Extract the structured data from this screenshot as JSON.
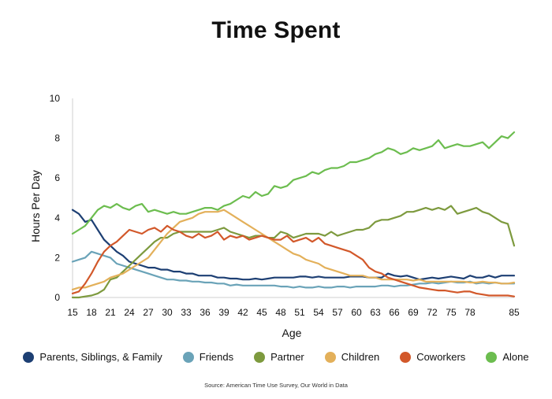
{
  "chart_data": {
    "type": "line",
    "title": "Time Spent",
    "xlabel": "Age",
    "ylabel": "Hours Per Day",
    "xlim": [
      15,
      85
    ],
    "ylim": [
      0,
      10
    ],
    "xticks": [
      15,
      18,
      21,
      24,
      27,
      30,
      33,
      36,
      39,
      42,
      45,
      48,
      51,
      54,
      57,
      60,
      63,
      66,
      69,
      72,
      75,
      78,
      85
    ],
    "yticks": [
      0,
      2,
      4,
      6,
      8,
      10
    ],
    "x": [
      15,
      16,
      17,
      18,
      19,
      20,
      21,
      22,
      23,
      24,
      25,
      26,
      27,
      28,
      29,
      30,
      31,
      32,
      33,
      34,
      35,
      36,
      37,
      38,
      39,
      40,
      41,
      42,
      43,
      44,
      45,
      46,
      47,
      48,
      49,
      50,
      51,
      52,
      53,
      54,
      55,
      56,
      57,
      58,
      59,
      60,
      61,
      62,
      63,
      64,
      65,
      66,
      67,
      68,
      69,
      70,
      71,
      72,
      73,
      74,
      75,
      76,
      77,
      78,
      79,
      80,
      81,
      82,
      83,
      84,
      85
    ],
    "series": [
      {
        "name": "Parents, Siblings, & Family",
        "color": "#1d3f73",
        "values": [
          4.4,
          4.2,
          3.8,
          3.9,
          3.4,
          2.9,
          2.6,
          2.3,
          2.1,
          1.8,
          1.7,
          1.6,
          1.5,
          1.5,
          1.4,
          1.4,
          1.3,
          1.3,
          1.2,
          1.2,
          1.1,
          1.1,
          1.1,
          1.0,
          1.0,
          0.95,
          0.95,
          0.9,
          0.9,
          0.95,
          0.9,
          0.95,
          1.0,
          1.0,
          1.0,
          1.0,
          1.05,
          1.05,
          1.0,
          1.05,
          1.0,
          1.0,
          1.0,
          1.0,
          1.05,
          1.05,
          1.05,
          1.0,
          1.0,
          1.0,
          1.2,
          1.1,
          1.05,
          1.1,
          1.0,
          0.9,
          0.95,
          1.0,
          0.95,
          1.0,
          1.05,
          1.0,
          0.95,
          1.1,
          1.0,
          1.0,
          1.1,
          1.0,
          1.1,
          1.1,
          1.1
        ]
      },
      {
        "name": "Friends",
        "color": "#6aa3b8",
        "values": [
          1.8,
          1.9,
          2.0,
          2.3,
          2.2,
          2.1,
          2.0,
          1.7,
          1.6,
          1.5,
          1.4,
          1.3,
          1.2,
          1.1,
          1.0,
          0.9,
          0.9,
          0.85,
          0.85,
          0.8,
          0.8,
          0.75,
          0.75,
          0.7,
          0.7,
          0.6,
          0.65,
          0.6,
          0.6,
          0.6,
          0.6,
          0.6,
          0.6,
          0.55,
          0.55,
          0.5,
          0.55,
          0.5,
          0.5,
          0.55,
          0.5,
          0.5,
          0.55,
          0.55,
          0.5,
          0.55,
          0.55,
          0.55,
          0.55,
          0.6,
          0.6,
          0.55,
          0.6,
          0.6,
          0.65,
          0.7,
          0.7,
          0.75,
          0.7,
          0.75,
          0.8,
          0.75,
          0.75,
          0.8,
          0.7,
          0.75,
          0.7,
          0.75,
          0.7,
          0.7,
          0.7
        ]
      },
      {
        "name": "Partner",
        "color": "#7d9a3e",
        "values": [
          0.0,
          0.0,
          0.05,
          0.1,
          0.2,
          0.4,
          0.9,
          1.0,
          1.3,
          1.6,
          1.9,
          2.2,
          2.5,
          2.8,
          3.0,
          3.0,
          3.2,
          3.3,
          3.3,
          3.3,
          3.3,
          3.3,
          3.3,
          3.4,
          3.5,
          3.3,
          3.2,
          3.1,
          3.0,
          3.1,
          3.1,
          3.0,
          3.0,
          3.3,
          3.2,
          3.0,
          3.1,
          3.2,
          3.2,
          3.2,
          3.1,
          3.3,
          3.1,
          3.2,
          3.3,
          3.4,
          3.4,
          3.5,
          3.8,
          3.9,
          3.9,
          4.0,
          4.1,
          4.3,
          4.3,
          4.4,
          4.5,
          4.4,
          4.5,
          4.4,
          4.6,
          4.2,
          4.3,
          4.4,
          4.5,
          4.3,
          4.2,
          4.0,
          3.8,
          3.7,
          2.6
        ]
      },
      {
        "name": "Children",
        "color": "#e3b05a",
        "values": [
          0.4,
          0.5,
          0.5,
          0.6,
          0.7,
          0.8,
          1.0,
          1.1,
          1.2,
          1.4,
          1.6,
          1.8,
          2.0,
          2.4,
          2.8,
          3.2,
          3.5,
          3.8,
          3.9,
          4.0,
          4.2,
          4.3,
          4.3,
          4.3,
          4.4,
          4.2,
          4.0,
          3.8,
          3.6,
          3.4,
          3.2,
          3.0,
          2.8,
          2.6,
          2.4,
          2.2,
          2.1,
          1.9,
          1.8,
          1.7,
          1.5,
          1.4,
          1.3,
          1.2,
          1.1,
          1.1,
          1.1,
          1.0,
          1.0,
          0.9,
          0.9,
          0.9,
          0.9,
          0.9,
          0.85,
          0.9,
          0.8,
          0.8,
          0.8,
          0.8,
          0.8,
          0.8,
          0.8,
          0.75,
          0.75,
          0.8,
          0.75,
          0.75,
          0.7,
          0.7,
          0.75
        ]
      },
      {
        "name": "Coworkers",
        "color": "#d2582a",
        "values": [
          0.2,
          0.3,
          0.7,
          1.2,
          1.8,
          2.3,
          2.6,
          2.8,
          3.1,
          3.4,
          3.3,
          3.2,
          3.4,
          3.5,
          3.3,
          3.6,
          3.4,
          3.3,
          3.1,
          3.0,
          3.2,
          3.0,
          3.1,
          3.3,
          2.9,
          3.1,
          3.0,
          3.1,
          2.9,
          3.0,
          3.1,
          3.0,
          2.9,
          2.9,
          3.1,
          2.8,
          2.9,
          3.0,
          2.8,
          3.0,
          2.7,
          2.6,
          2.5,
          2.4,
          2.3,
          2.1,
          1.9,
          1.5,
          1.3,
          1.2,
          1.0,
          0.9,
          0.8,
          0.7,
          0.6,
          0.5,
          0.45,
          0.4,
          0.35,
          0.35,
          0.3,
          0.25,
          0.3,
          0.3,
          0.2,
          0.15,
          0.1,
          0.1,
          0.1,
          0.1,
          0.05
        ]
      },
      {
        "name": "Alone",
        "color": "#6cbd4f",
        "values": [
          3.2,
          3.4,
          3.6,
          4.0,
          4.4,
          4.6,
          4.5,
          4.7,
          4.5,
          4.4,
          4.6,
          4.7,
          4.3,
          4.4,
          4.3,
          4.2,
          4.3,
          4.2,
          4.2,
          4.3,
          4.4,
          4.5,
          4.5,
          4.4,
          4.6,
          4.7,
          4.9,
          5.1,
          5.0,
          5.3,
          5.1,
          5.2,
          5.6,
          5.5,
          5.6,
          5.9,
          6.0,
          6.1,
          6.3,
          6.2,
          6.4,
          6.5,
          6.5,
          6.6,
          6.8,
          6.8,
          6.9,
          7.0,
          7.2,
          7.3,
          7.5,
          7.4,
          7.2,
          7.3,
          7.5,
          7.4,
          7.5,
          7.6,
          7.9,
          7.5,
          7.6,
          7.7,
          7.6,
          7.6,
          7.7,
          7.8,
          7.5,
          7.8,
          8.1,
          8.0,
          8.3
        ]
      }
    ],
    "legend_position": "bottom",
    "source": "Source: American Time Use Survey, Our World in Data",
    "grid": false
  }
}
